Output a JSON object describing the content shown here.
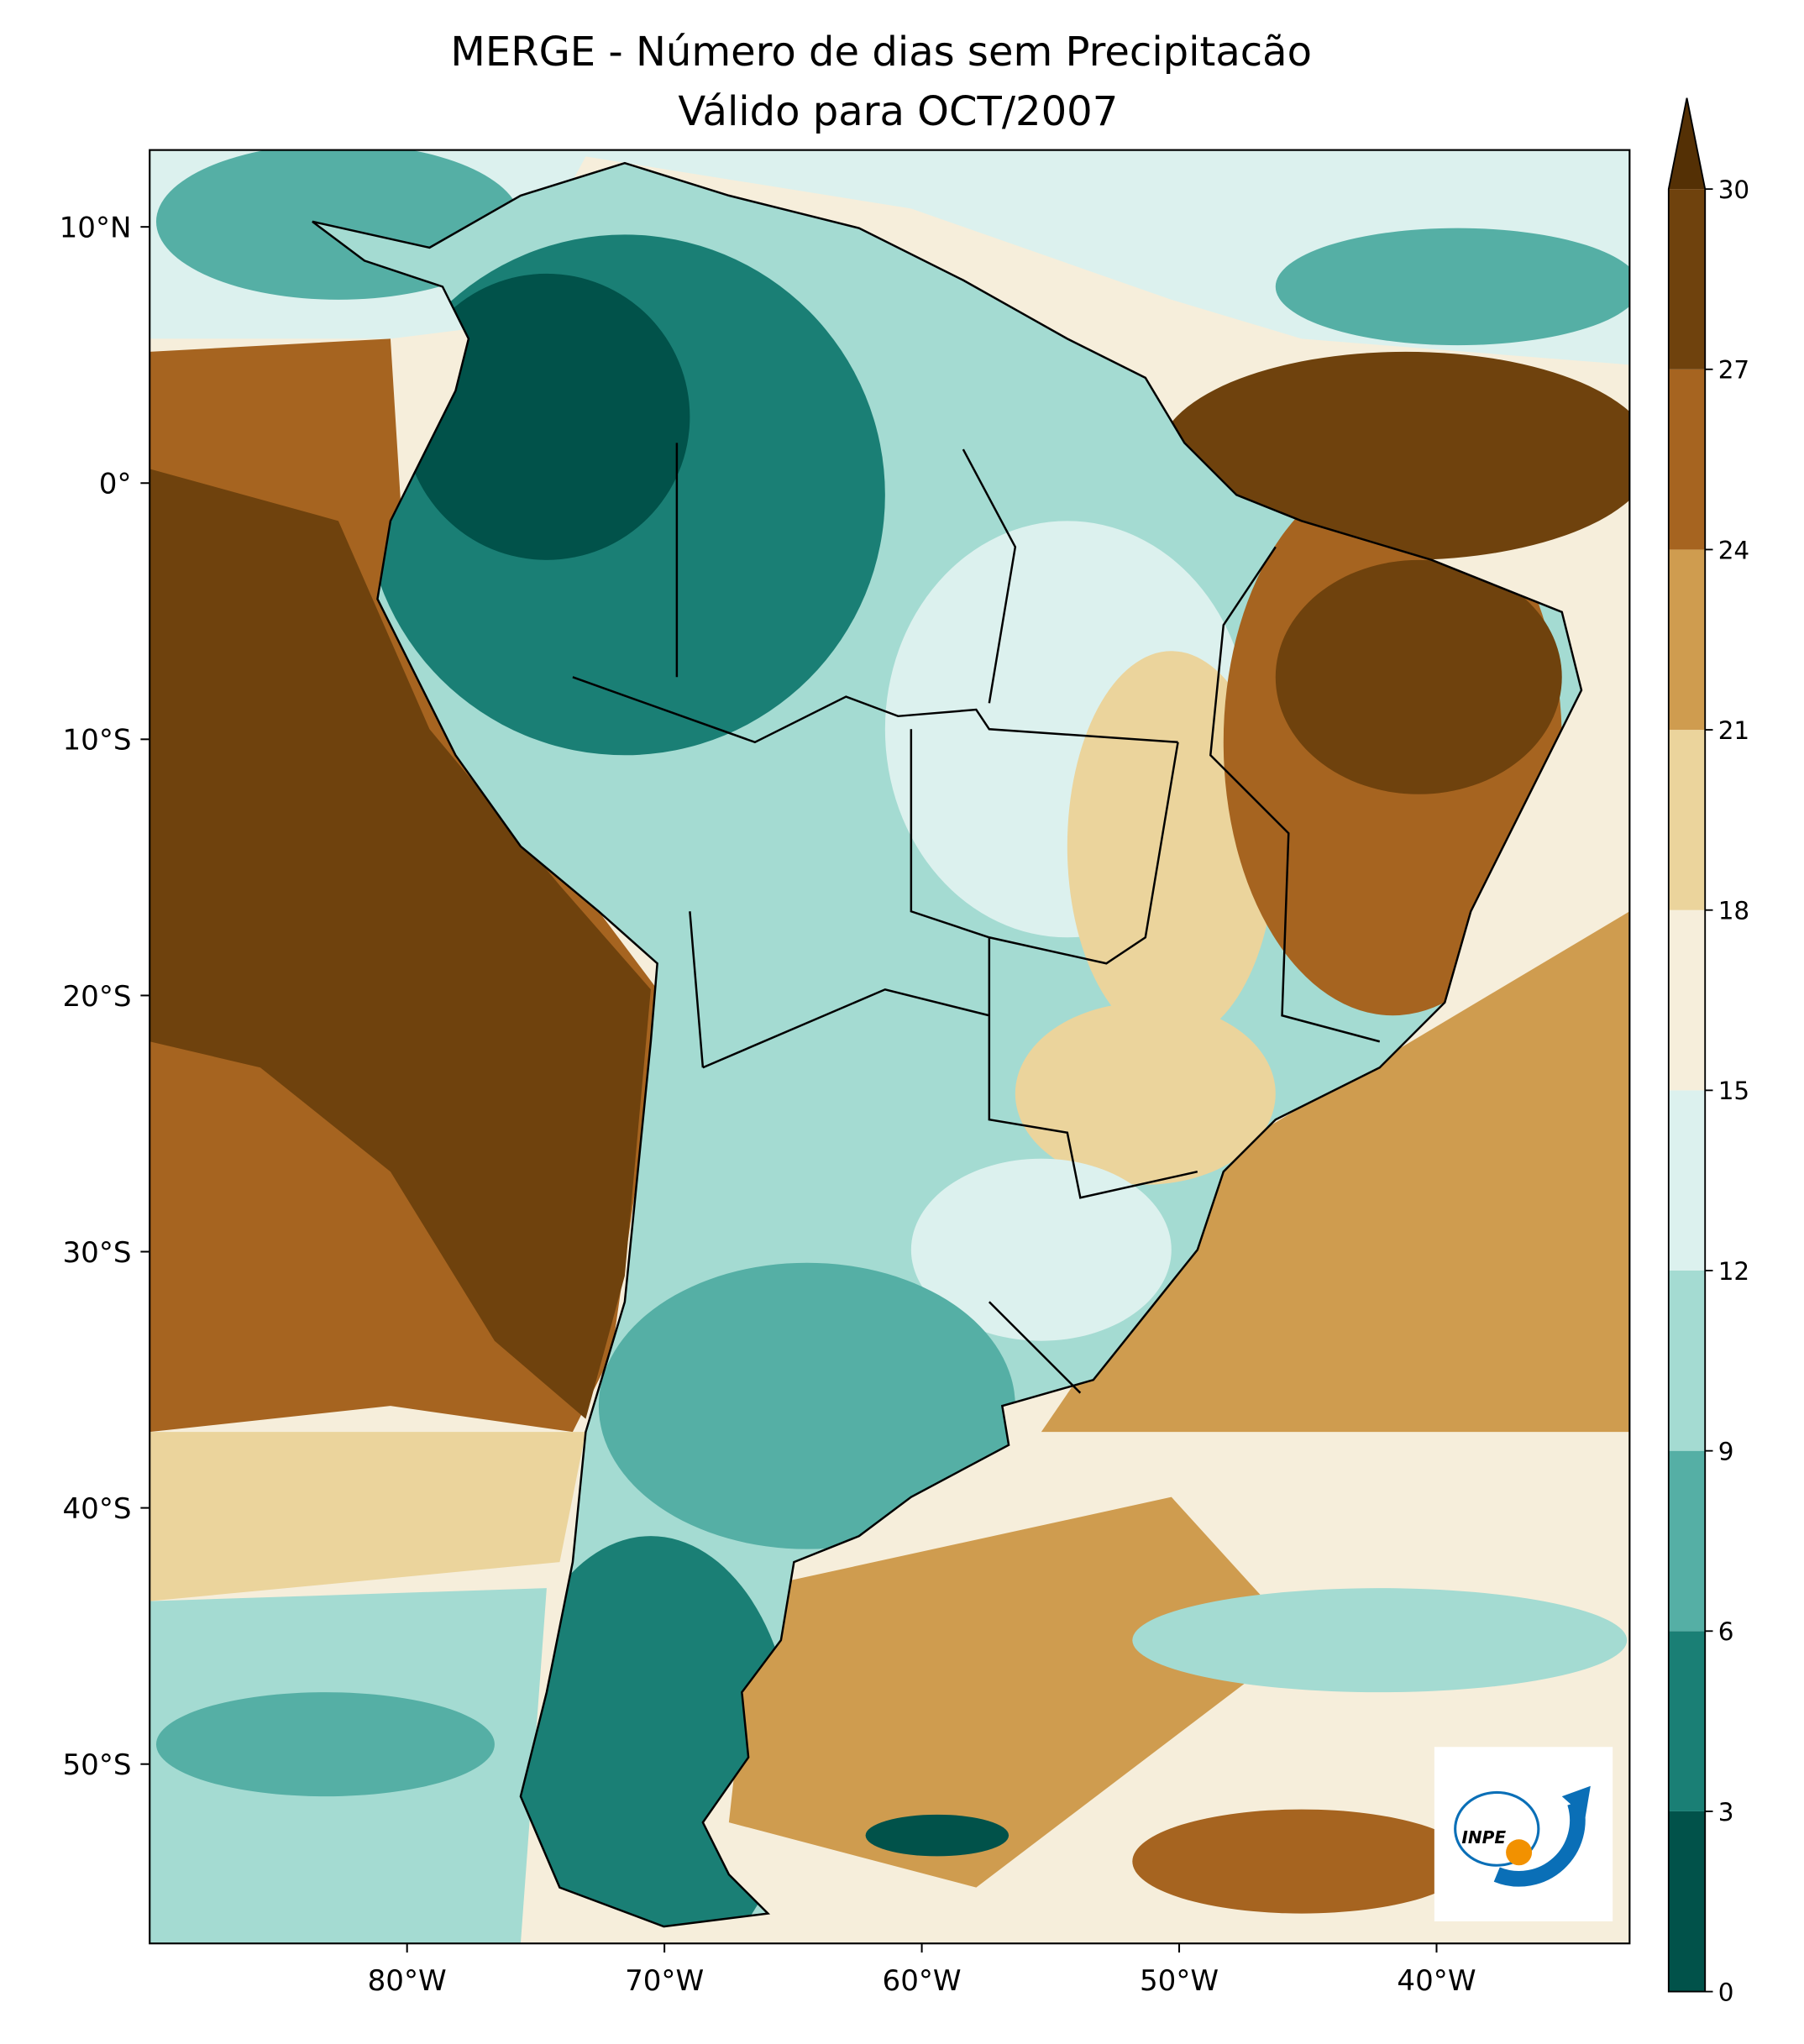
{
  "map": {
    "title": [
      "MERGE - Número de dias sem Precipitacão",
      "Válido para OCT/2007"
    ],
    "xlim": [
      -90,
      -32.5
    ],
    "ylim": [
      -57,
      13
    ],
    "lon_ticks": [
      {
        "value": -80,
        "label": "80°W"
      },
      {
        "value": -70,
        "label": "70°W"
      },
      {
        "value": -60,
        "label": "60°W"
      },
      {
        "value": -50,
        "label": "50°W"
      },
      {
        "value": -40,
        "label": "40°W"
      }
    ],
    "lat_ticks": [
      {
        "value": 10,
        "label": "10°N"
      },
      {
        "value": 0,
        "label": "0°"
      },
      {
        "value": -10,
        "label": "10°S"
      },
      {
        "value": -20,
        "label": "20°S"
      },
      {
        "value": -30,
        "label": "30°S"
      },
      {
        "value": -40,
        "label": "40°S"
      },
      {
        "value": -50,
        "label": "50°S"
      }
    ],
    "colorbar": {
      "ticks": [
        0,
        3,
        6,
        9,
        12,
        15,
        18,
        21,
        24,
        27,
        30
      ],
      "colors": [
        "#01524a",
        "#1a7f75",
        "#55afa5",
        "#a4dbd2",
        "#dcf1ee",
        "#f6eedb",
        "#ebd49c",
        "#cf9c4f",
        "#a66420",
        "#6f420d"
      ],
      "extend_color": "#543005"
    },
    "logo_text": "INPE"
  }
}
